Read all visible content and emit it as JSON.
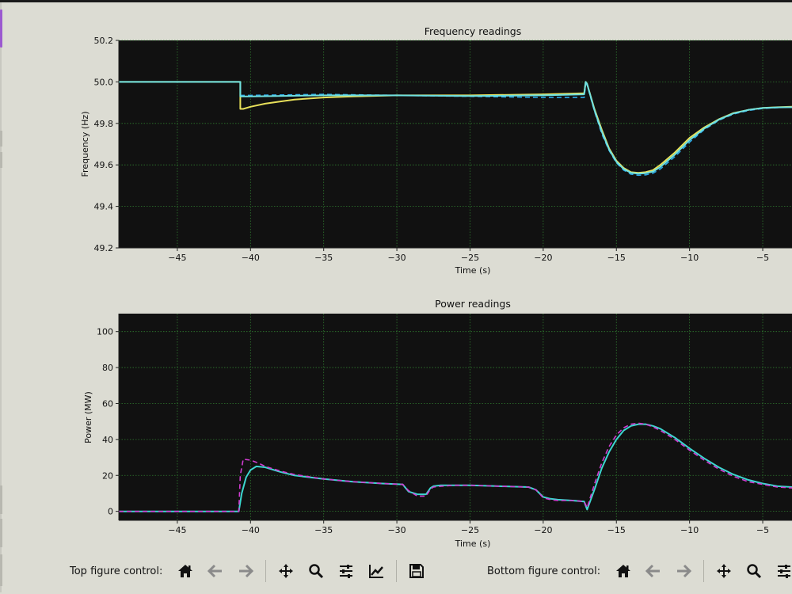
{
  "toolbars": {
    "top": {
      "label": "Top figure control:"
    },
    "bottom": {
      "label": "Bottom figure control:"
    }
  },
  "icons": [
    "home-icon",
    "back-arrow-icon",
    "forward-arrow-icon",
    "pan-icon",
    "zoom-icon",
    "sliders-icon",
    "edit-curve-icon",
    "save-icon"
  ],
  "chart_data": [
    {
      "type": "line",
      "title": "Frequency readings",
      "xlabel": "Time (s)",
      "ylabel": "Frequency (Hz)",
      "xlim": [
        -49,
        -3
      ],
      "ylim": [
        49.2,
        50.2
      ],
      "xticks": [
        -45,
        -40,
        -35,
        -30,
        -25,
        -20,
        -15,
        -10,
        -5
      ],
      "xtick_labels": [
        "−45",
        "−40",
        "−35",
        "−30",
        "−25",
        "−20",
        "−15",
        "−10",
        "−5"
      ],
      "yticks": [
        49.2,
        49.4,
        49.6,
        49.8,
        50.0,
        50.2
      ],
      "ytick_labels": [
        "49.2",
        "49.4",
        "49.6",
        "49.8",
        "50.0",
        "50.2"
      ],
      "grid": true,
      "colors": {
        "background": "#111111",
        "grid": "#2f7a2f"
      },
      "series": [
        {
          "color": "#e8e05a",
          "style": "solid",
          "x": [
            -49,
            -40.7,
            -40.7,
            -40.5,
            -40,
            -39,
            -38,
            -37,
            -35,
            -33,
            -30,
            -25,
            -20,
            -17.2,
            -17.1,
            -17,
            -16.5,
            -16,
            -15.5,
            -15,
            -14.5,
            -14,
            -13.5,
            -13,
            -12.5,
            -12,
            -11,
            -10,
            -9,
            -8,
            -7,
            -6,
            -5,
            -4,
            -3
          ],
          "y": [
            50.0,
            50.0,
            49.87,
            49.87,
            49.88,
            49.895,
            49.905,
            49.915,
            49.925,
            49.93,
            49.935,
            49.935,
            49.94,
            49.945,
            50.0,
            49.99,
            49.87,
            49.77,
            49.68,
            49.62,
            49.585,
            49.565,
            49.562,
            49.565,
            49.575,
            49.6,
            49.66,
            49.73,
            49.78,
            49.82,
            49.85,
            49.865,
            49.875,
            49.878,
            49.88
          ]
        },
        {
          "color": "#2aa8e8",
          "style": "dashed",
          "x": [
            -49,
            -40.7,
            -40.7,
            -40,
            -35,
            -30,
            -25,
            -20,
            -17.2,
            -17.1,
            -17,
            -16.5,
            -16,
            -15.5,
            -15,
            -14.5,
            -14,
            -13.5,
            -13,
            -12.5,
            -12,
            -11,
            -10,
            -9,
            -8,
            -7,
            -6,
            -5,
            -4,
            -3
          ],
          "y": [
            50.0,
            50.0,
            49.935,
            49.935,
            49.94,
            49.935,
            49.93,
            49.925,
            49.925,
            49.99,
            49.985,
            49.86,
            49.75,
            49.67,
            49.61,
            49.575,
            49.555,
            49.55,
            49.552,
            49.56,
            49.58,
            49.64,
            49.71,
            49.77,
            49.815,
            49.845,
            49.862,
            49.872,
            49.876,
            49.878
          ]
        },
        {
          "color": "#6fe0e0",
          "style": "solid",
          "x": [
            -49,
            -40.7,
            -40.7,
            -40,
            -35,
            -30,
            -25,
            -20,
            -17.2,
            -17.1,
            -17,
            -16.5,
            -16,
            -15.5,
            -15,
            -14.5,
            -14,
            -13.5,
            -13,
            -12.5,
            -12,
            -11,
            -10,
            -9,
            -8,
            -7,
            -6,
            -5,
            -4,
            -3
          ],
          "y": [
            50.0,
            50.0,
            49.93,
            49.93,
            49.935,
            49.935,
            49.932,
            49.935,
            49.94,
            50.0,
            49.99,
            49.865,
            49.76,
            49.675,
            49.615,
            49.58,
            49.562,
            49.558,
            49.56,
            49.568,
            49.59,
            49.65,
            49.72,
            49.775,
            49.818,
            49.848,
            49.865,
            49.874,
            49.877,
            49.878
          ]
        }
      ]
    },
    {
      "type": "line",
      "title": "Power readings",
      "xlabel": "Time (s)",
      "ylabel": "Power (MW)",
      "xlim": [
        -49,
        -3
      ],
      "ylim": [
        -5,
        110
      ],
      "xticks": [
        -45,
        -40,
        -35,
        -30,
        -25,
        -20,
        -15,
        -10,
        -5
      ],
      "xtick_labels": [
        "−45",
        "−40",
        "−35",
        "−30",
        "−25",
        "−20",
        "−15",
        "−10",
        "−5"
      ],
      "yticks": [
        0,
        20,
        40,
        60,
        80,
        100
      ],
      "ytick_labels": [
        "0",
        "20",
        "40",
        "60",
        "80",
        "100"
      ],
      "grid": true,
      "colors": {
        "background": "#111111",
        "grid": "#2f7a2f"
      },
      "series": [
        {
          "color": "#3dd6d0",
          "style": "solid",
          "x": [
            -49,
            -40.8,
            -40.6,
            -40.3,
            -40,
            -39.6,
            -39,
            -38,
            -37,
            -35,
            -33,
            -31,
            -29.6,
            -29.2,
            -28.6,
            -28,
            -27.7,
            -27.5,
            -27,
            -26,
            -25,
            -23,
            -21,
            -20.5,
            -20,
            -19.5,
            -19,
            -18,
            -17.2,
            -17,
            -16.5,
            -16,
            -15.5,
            -15,
            -14.5,
            -14,
            -13.5,
            -13,
            -12.5,
            -12,
            -11,
            -10,
            -9,
            -8,
            -7,
            -6,
            -5,
            -4,
            -3
          ],
          "y": [
            0,
            0,
            10,
            19,
            23,
            25,
            24.5,
            22,
            20,
            18,
            16.5,
            15.5,
            15,
            11,
            9.5,
            9.5,
            13,
            14,
            14.5,
            14.5,
            14.5,
            14,
            13.5,
            12,
            8,
            7,
            6.5,
            6,
            5.5,
            1,
            12,
            24,
            33,
            40,
            45,
            47.5,
            48.5,
            48.5,
            47.5,
            46,
            41,
            35,
            29.5,
            24.5,
            20.5,
            17.5,
            15.5,
            14,
            13.5
          ]
        },
        {
          "color": "#d23cd2",
          "style": "dashed",
          "x": [
            -49,
            -40.8,
            -40.7,
            -40.5,
            -40,
            -39.5,
            -39,
            -38,
            -37,
            -35,
            -33,
            -31,
            -29.6,
            -29.2,
            -28.6,
            -28,
            -27.7,
            -27.5,
            -27,
            -26,
            -25,
            -23,
            -21,
            -20.5,
            -20,
            -19.5,
            -19,
            -18,
            -17.2,
            -17,
            -16.5,
            -16,
            -15.5,
            -15,
            -14.5,
            -14,
            -13.5,
            -13,
            -12.5,
            -12,
            -11,
            -10,
            -9,
            -8,
            -7,
            -6,
            -5,
            -4,
            -3
          ],
          "y": [
            0,
            0,
            20,
            29,
            28.5,
            27,
            25,
            22.5,
            20.5,
            18,
            16.5,
            15.5,
            15,
            11.5,
            8.5,
            8.5,
            12.5,
            13.5,
            14,
            14.5,
            14.5,
            14,
            13.5,
            12,
            7.5,
            6.5,
            6,
            6,
            5.5,
            2,
            15,
            27,
            36,
            42.5,
            46.5,
            48.5,
            49,
            48.5,
            47,
            45,
            40,
            34,
            28.5,
            23.5,
            19.5,
            16.5,
            15,
            13.5,
            13
          ]
        }
      ]
    }
  ]
}
